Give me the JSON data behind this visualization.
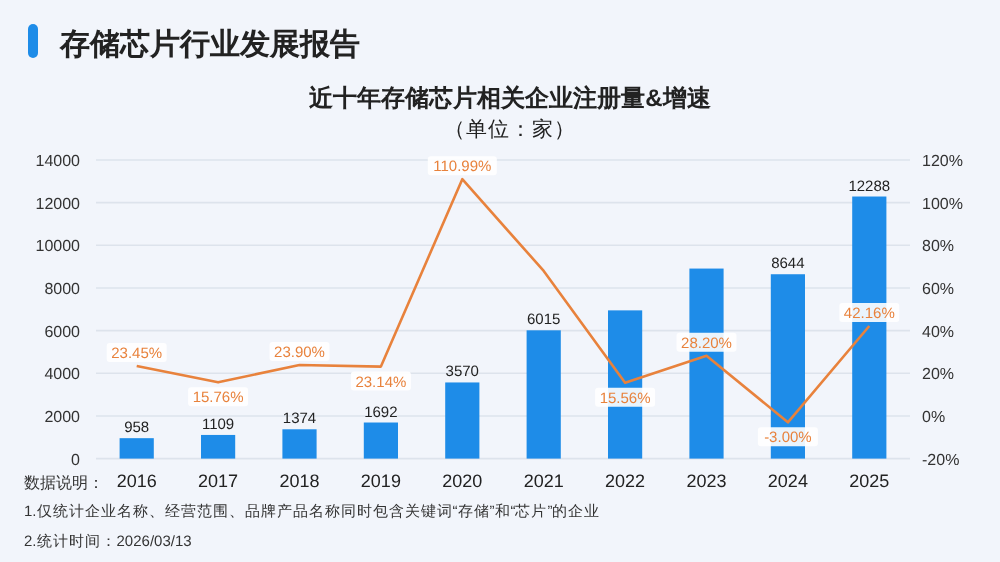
{
  "chart_data": {
    "type": "bar",
    "title": "存储芯片行业发展报告",
    "subtitle": "近十年存储芯片相关企业注册量&增速",
    "annotations": [
      "（单位：家）",
      "数据说明：",
      "1.仅统计企业名称、经营范围、品牌产品名称同时包含关键词“存储”和“芯片”的企业",
      "2.统计时间：2026/03/13"
    ],
    "categories": [
      "2016",
      "2017",
      "2018",
      "2019",
      "2020",
      "2021",
      "2022",
      "2023",
      "2024",
      "2025"
    ],
    "series": [
      {
        "color": "#1e8ce8",
        "values": [
          958,
          1109,
          1374,
          1692,
          3570,
          6015,
          6950,
          8910,
          8644,
          12288
        ],
        "value_labels": [
          "958",
          "1109",
          "1374",
          "1692",
          "3570",
          "6015",
          null,
          null,
          "8644",
          "12288"
        ]
      },
      {
        "type": "line",
        "axis": "y2",
        "color": "#e8823c",
        "values": [
          23.45,
          15.76,
          23.9,
          23.14,
          110.99,
          68,
          15.56,
          28.2,
          -3.0,
          42.16
        ],
        "value_labels": [
          "23.45%",
          "15.76%",
          "23.90%",
          "23.14%",
          "110.99%",
          null,
          "15.56%",
          "28.20%",
          "-3.00%",
          "42.16%"
        ]
      }
    ],
    "ylim": [
      0,
      14000
    ],
    "yticks": [
      0,
      2000,
      4000,
      6000,
      8000,
      10000,
      12000,
      14000
    ],
    "y2lim": [
      -20,
      120
    ],
    "y2ticks": [
      {
        "value": -20,
        "label": "-20%"
      },
      {
        "value": 0,
        "label": "0%"
      },
      {
        "value": 20,
        "label": "20%"
      },
      {
        "value": 40,
        "label": "40%"
      },
      {
        "value": 60,
        "label": "60%"
      },
      {
        "value": 80,
        "label": "80%"
      },
      {
        "value": 100,
        "label": "100%"
      },
      {
        "value": 120,
        "label": "120%"
      }
    ],
    "grid": "y"
  }
}
